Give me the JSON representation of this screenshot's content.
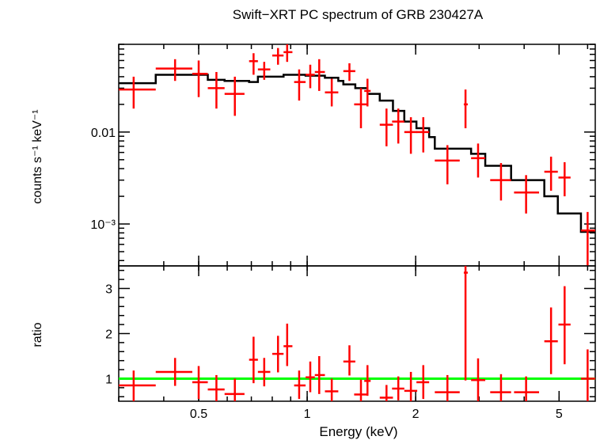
{
  "chart_data": [
    {
      "type": "scatter",
      "panel": "top",
      "title": "Swift−XRT PC spectrum of GRB 230427A",
      "xlabel": "Energy (keV)",
      "ylabel": "counts s⁻¹ keV⁻¹",
      "xscale": "log",
      "yscale": "log",
      "xlim": [
        0.3,
        6.3
      ],
      "ylim": [
        0.00035,
        0.09
      ],
      "yticks": [
        {
          "value": 0.01,
          "label": "0.01"
        },
        {
          "value": 0.001,
          "label": "10⁻³"
        }
      ],
      "series": [
        {
          "name": "data",
          "color": "#ff0000",
          "points": [
            {
              "x": 0.33,
              "xlo": 0.3,
              "xhi": 0.38,
              "y": 0.029,
              "ylo": 0.018,
              "yhi": 0.04
            },
            {
              "x": 0.43,
              "xlo": 0.38,
              "xhi": 0.48,
              "y": 0.049,
              "ylo": 0.036,
              "yhi": 0.062
            },
            {
              "x": 0.5,
              "xlo": 0.48,
              "xhi": 0.53,
              "y": 0.043,
              "ylo": 0.024,
              "yhi": 0.06
            },
            {
              "x": 0.56,
              "xlo": 0.53,
              "xhi": 0.59,
              "y": 0.03,
              "ylo": 0.018,
              "yhi": 0.045
            },
            {
              "x": 0.63,
              "xlo": 0.59,
              "xhi": 0.67,
              "y": 0.026,
              "ylo": 0.015,
              "yhi": 0.04
            },
            {
              "x": 0.71,
              "xlo": 0.69,
              "xhi": 0.73,
              "y": 0.059,
              "ylo": 0.042,
              "yhi": 0.072
            },
            {
              "x": 0.76,
              "xlo": 0.73,
              "xhi": 0.79,
              "y": 0.048,
              "ylo": 0.037,
              "yhi": 0.058
            },
            {
              "x": 0.83,
              "xlo": 0.8,
              "xhi": 0.86,
              "y": 0.068,
              "ylo": 0.054,
              "yhi": 0.082
            },
            {
              "x": 0.88,
              "xlo": 0.86,
              "xhi": 0.91,
              "y": 0.074,
              "ylo": 0.058,
              "yhi": 0.09
            },
            {
              "x": 0.95,
              "xlo": 0.92,
              "xhi": 0.99,
              "y": 0.035,
              "ylo": 0.022,
              "yhi": 0.048
            },
            {
              "x": 1.02,
              "xlo": 0.99,
              "xhi": 1.05,
              "y": 0.042,
              "ylo": 0.03,
              "yhi": 0.054
            },
            {
              "x": 1.08,
              "xlo": 1.05,
              "xhi": 1.12,
              "y": 0.045,
              "ylo": 0.028,
              "yhi": 0.062
            },
            {
              "x": 1.17,
              "xlo": 1.12,
              "xhi": 1.22,
              "y": 0.027,
              "ylo": 0.019,
              "yhi": 0.038
            },
            {
              "x": 1.31,
              "xlo": 1.26,
              "xhi": 1.36,
              "y": 0.046,
              "ylo": 0.036,
              "yhi": 0.056
            },
            {
              "x": 1.41,
              "xlo": 1.35,
              "xhi": 1.47,
              "y": 0.02,
              "ylo": 0.011,
              "yhi": 0.03
            },
            {
              "x": 1.47,
              "xlo": 1.44,
              "xhi": 1.5,
              "y": 0.028,
              "ylo": 0.019,
              "yhi": 0.038
            },
            {
              "x": 1.66,
              "xlo": 1.59,
              "xhi": 1.73,
              "y": 0.012,
              "ylo": 0.007,
              "yhi": 0.018
            },
            {
              "x": 1.79,
              "xlo": 1.72,
              "xhi": 1.86,
              "y": 0.013,
              "ylo": 0.0075,
              "yhi": 0.018
            },
            {
              "x": 1.94,
              "xlo": 1.86,
              "xhi": 2.02,
              "y": 0.01,
              "ylo": 0.0058,
              "yhi": 0.0145
            },
            {
              "x": 2.1,
              "xlo": 2.01,
              "xhi": 2.18,
              "y": 0.01,
              "ylo": 0.006,
              "yhi": 0.0145
            },
            {
              "x": 2.45,
              "xlo": 2.26,
              "xhi": 2.65,
              "y": 0.0049,
              "ylo": 0.0027,
              "yhi": 0.0072
            },
            {
              "x": 2.75,
              "xlo": 2.72,
              "xhi": 2.79,
              "y": 0.02,
              "ylo": 0.011,
              "yhi": 0.029
            },
            {
              "x": 2.98,
              "xlo": 2.85,
              "xhi": 3.12,
              "y": 0.0052,
              "ylo": 0.0032,
              "yhi": 0.0075
            },
            {
              "x": 3.45,
              "xlo": 3.22,
              "xhi": 3.68,
              "y": 0.003,
              "ylo": 0.0018,
              "yhi": 0.0046
            },
            {
              "x": 4.05,
              "xlo": 3.75,
              "xhi": 4.4,
              "y": 0.0022,
              "ylo": 0.0013,
              "yhi": 0.0034
            },
            {
              "x": 4.75,
              "xlo": 4.55,
              "xhi": 4.96,
              "y": 0.0037,
              "ylo": 0.0023,
              "yhi": 0.0054
            },
            {
              "x": 5.18,
              "xlo": 4.98,
              "xhi": 5.38,
              "y": 0.0032,
              "ylo": 0.002,
              "yhi": 0.0047
            },
            {
              "x": 6.0,
              "xlo": 5.75,
              "xhi": 6.3,
              "y": 0.00085,
              "ylo": 0.00035,
              "yhi": 0.00135
            }
          ]
        },
        {
          "name": "model",
          "color": "#000000",
          "style": "step",
          "edges": [
            0.3,
            0.38,
            0.53,
            0.59,
            0.69,
            0.73,
            0.86,
            0.99,
            1.12,
            1.22,
            1.26,
            1.36,
            1.47,
            1.59,
            1.73,
            1.86,
            2.01,
            2.18,
            2.26,
            2.65,
            2.85,
            3.12,
            3.22,
            3.68,
            4.4,
            4.55,
            4.96,
            5.75,
            6.3
          ],
          "values": [
            0.034,
            0.042,
            0.037,
            0.036,
            0.035,
            0.04,
            0.042,
            0.041,
            0.039,
            0.036,
            0.033,
            0.03,
            0.026,
            0.022,
            0.017,
            0.013,
            0.011,
            0.0088,
            0.0066,
            0.0066,
            0.0058,
            0.0043,
            0.0043,
            0.003,
            0.003,
            0.002,
            0.0013,
            0.00082
          ]
        }
      ]
    },
    {
      "type": "scatter",
      "panel": "bottom",
      "xlabel": "Energy (keV)",
      "ylabel": "ratio",
      "xscale": "log",
      "xlim": [
        0.3,
        6.3
      ],
      "ylim": [
        0.5,
        3.5
      ],
      "xticks": [
        {
          "value": 0.5,
          "label": "0.5"
        },
        {
          "value": 1,
          "label": "1"
        },
        {
          "value": 2,
          "label": "2"
        },
        {
          "value": 5,
          "label": "5"
        }
      ],
      "yticks": [
        {
          "value": 1,
          "label": "1"
        },
        {
          "value": 2,
          "label": "2"
        },
        {
          "value": 3,
          "label": "3"
        }
      ],
      "reference_line": {
        "y": 1,
        "color": "#00ff00"
      },
      "series": [
        {
          "name": "ratio",
          "color": "#ff0000",
          "points": [
            {
              "x": 0.33,
              "xlo": 0.3,
              "xhi": 0.38,
              "y": 0.85,
              "ylo": 0.5,
              "yhi": 1.18
            },
            {
              "x": 0.43,
              "xlo": 0.38,
              "xhi": 0.48,
              "y": 1.15,
              "ylo": 0.84,
              "yhi": 1.46
            },
            {
              "x": 0.5,
              "xlo": 0.48,
              "xhi": 0.53,
              "y": 0.92,
              "ylo": 0.55,
              "yhi": 1.28
            },
            {
              "x": 0.56,
              "xlo": 0.53,
              "xhi": 0.59,
              "y": 0.76,
              "ylo": 0.5,
              "yhi": 1.08
            },
            {
              "x": 0.63,
              "xlo": 0.59,
              "xhi": 0.67,
              "y": 0.66,
              "ylo": 0.5,
              "yhi": 1.0
            },
            {
              "x": 0.71,
              "xlo": 0.69,
              "xhi": 0.73,
              "y": 1.42,
              "ylo": 0.9,
              "yhi": 1.93
            },
            {
              "x": 0.76,
              "xlo": 0.73,
              "xhi": 0.79,
              "y": 1.15,
              "ylo": 0.83,
              "yhi": 1.46
            },
            {
              "x": 0.83,
              "xlo": 0.8,
              "xhi": 0.86,
              "y": 1.55,
              "ylo": 1.14,
              "yhi": 1.95
            },
            {
              "x": 0.88,
              "xlo": 0.86,
              "xhi": 0.91,
              "y": 1.72,
              "ylo": 1.28,
              "yhi": 2.22
            },
            {
              "x": 0.95,
              "xlo": 0.92,
              "xhi": 0.99,
              "y": 0.85,
              "ylo": 0.55,
              "yhi": 1.18
            },
            {
              "x": 1.02,
              "xlo": 0.99,
              "xhi": 1.05,
              "y": 1.03,
              "ylo": 0.7,
              "yhi": 1.38
            },
            {
              "x": 1.08,
              "xlo": 1.05,
              "xhi": 1.12,
              "y": 1.08,
              "ylo": 0.66,
              "yhi": 1.5
            },
            {
              "x": 1.17,
              "xlo": 1.12,
              "xhi": 1.22,
              "y": 0.72,
              "ylo": 0.5,
              "yhi": 1.0
            },
            {
              "x": 1.31,
              "xlo": 1.26,
              "xhi": 1.36,
              "y": 1.38,
              "ylo": 1.07,
              "yhi": 1.74
            },
            {
              "x": 1.41,
              "xlo": 1.35,
              "xhi": 1.47,
              "y": 0.65,
              "ylo": 0.5,
              "yhi": 0.98
            },
            {
              "x": 1.47,
              "xlo": 1.44,
              "xhi": 1.5,
              "y": 0.95,
              "ylo": 0.62,
              "yhi": 1.3
            },
            {
              "x": 1.66,
              "xlo": 1.59,
              "xhi": 1.73,
              "y": 0.58,
              "ylo": 0.5,
              "yhi": 0.86
            },
            {
              "x": 1.79,
              "xlo": 1.72,
              "xhi": 1.86,
              "y": 0.78,
              "ylo": 0.52,
              "yhi": 1.05
            },
            {
              "x": 1.94,
              "xlo": 1.86,
              "xhi": 2.02,
              "y": 0.73,
              "ylo": 0.5,
              "yhi": 1.15
            },
            {
              "x": 2.1,
              "xlo": 2.01,
              "xhi": 2.18,
              "y": 0.92,
              "ylo": 0.55,
              "yhi": 1.3
            },
            {
              "x": 2.45,
              "xlo": 2.26,
              "xhi": 2.65,
              "y": 0.7,
              "ylo": 0.5,
              "yhi": 1.08
            },
            {
              "x": 2.75,
              "xlo": 2.72,
              "xhi": 2.79,
              "y": 3.35,
              "ylo": 0.96,
              "yhi": 3.5
            },
            {
              "x": 2.98,
              "xlo": 2.85,
              "xhi": 3.12,
              "y": 0.97,
              "ylo": 0.5,
              "yhi": 1.45
            },
            {
              "x": 3.45,
              "xlo": 3.22,
              "xhi": 3.68,
              "y": 0.7,
              "ylo": 0.5,
              "yhi": 1.1
            },
            {
              "x": 4.05,
              "xlo": 3.75,
              "xhi": 4.4,
              "y": 0.7,
              "ylo": 0.5,
              "yhi": 1.05
            },
            {
              "x": 4.75,
              "xlo": 4.55,
              "xhi": 4.96,
              "y": 1.83,
              "ylo": 1.1,
              "yhi": 2.58
            },
            {
              "x": 5.18,
              "xlo": 4.98,
              "xhi": 5.38,
              "y": 2.2,
              "ylo": 1.32,
              "yhi": 3.05
            },
            {
              "x": 6.0,
              "xlo": 5.75,
              "xhi": 6.3,
              "y": 1.0,
              "ylo": 0.5,
              "yhi": 1.65
            }
          ]
        }
      ]
    }
  ]
}
